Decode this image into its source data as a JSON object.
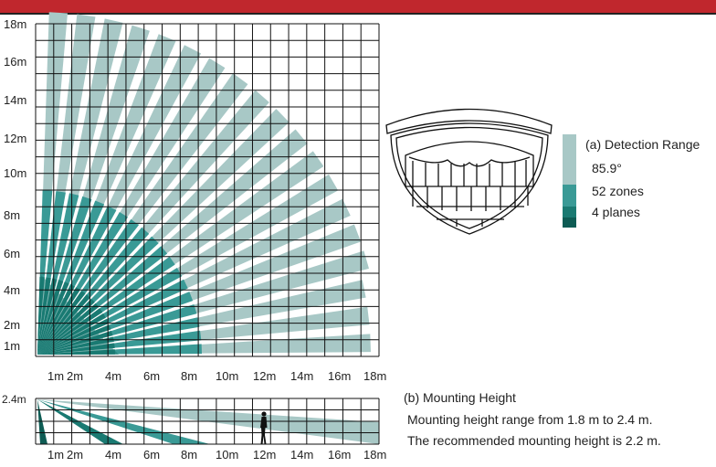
{
  "colors": {
    "header_bar": "#c0272d",
    "light_beam": "#a8c8c6",
    "mid_beam": "#3a9a96",
    "dark_beam": "#1a7a72",
    "darkest_beam": "#0e5c54",
    "grid": "#111111"
  },
  "top_view": {
    "y_axis_labels": [
      "18m",
      "16m",
      "14m",
      "12m",
      "10m",
      "8m",
      "6m",
      "4m",
      "2m",
      "1m"
    ],
    "x_axis_labels": [
      "1m",
      "2m",
      "4m",
      "6m",
      "8m",
      "10m",
      "12m",
      "14m",
      "16m",
      "18m"
    ]
  },
  "legend": {
    "title": "(a) Detection Range",
    "items": [
      "85.9°",
      "52 zones",
      "4 planes"
    ]
  },
  "side_view": {
    "height_label": "2.4m",
    "x_axis_labels": [
      "1m",
      "2m",
      "4m",
      "6m",
      "8m",
      "10m",
      "12m",
      "14m",
      "16m",
      "18m"
    ]
  },
  "mounting": {
    "title": "(b) Mounting Height",
    "lines": [
      "Mounting height range from 1.8 m to 2.4 m.",
      "The recommended mounting height is 2.2 m."
    ]
  }
}
